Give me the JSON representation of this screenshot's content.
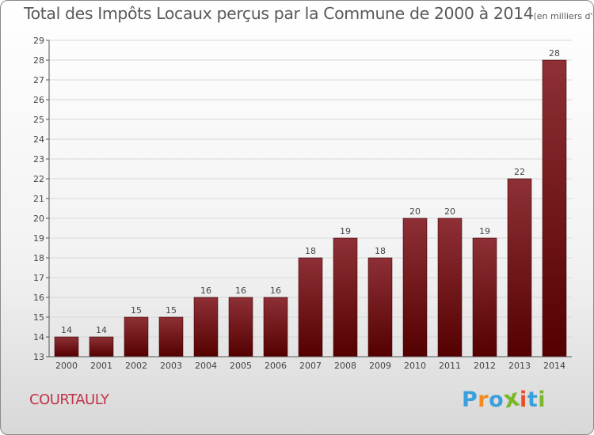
{
  "page_title_main": "Total des Impôts Locaux perçus par la Commune de 2000 à 2014",
  "page_title_unit": "(en milliers d'€)",
  "commune_name": "COURTAULY",
  "logo": {
    "letters": [
      "P",
      "r",
      "o",
      "x",
      "i",
      "t",
      "i"
    ],
    "colors": [
      "#3aa0dc",
      "#f28a1e",
      "#3aa0dc",
      "#7ab829",
      "#e94e2c",
      "#3aa0dc",
      "#7ab829"
    ]
  },
  "colors": {
    "bar_top": "#8e3036",
    "bar_bottom": "#540000",
    "bar_stroke": "#3a0000",
    "grid": "#d8d8d8",
    "axis": "#555555"
  },
  "chart_data": {
    "type": "bar",
    "title": "Total des Impôts Locaux perçus par la Commune de 2000 à 2014",
    "xlabel": "",
    "ylabel": "en milliers d'€",
    "categories": [
      "2000",
      "2001",
      "2002",
      "2003",
      "2004",
      "2005",
      "2006",
      "2007",
      "2008",
      "2009",
      "2010",
      "2011",
      "2012",
      "2013",
      "2014"
    ],
    "values": [
      14,
      14,
      15,
      15,
      16,
      16,
      16,
      18,
      19,
      18,
      20,
      20,
      19,
      22,
      28
    ],
    "ylim": [
      13,
      29
    ],
    "yticks": [
      13,
      14,
      15,
      16,
      17,
      18,
      19,
      20,
      21,
      22,
      23,
      24,
      25,
      26,
      27,
      28,
      29
    ],
    "grid": true
  }
}
